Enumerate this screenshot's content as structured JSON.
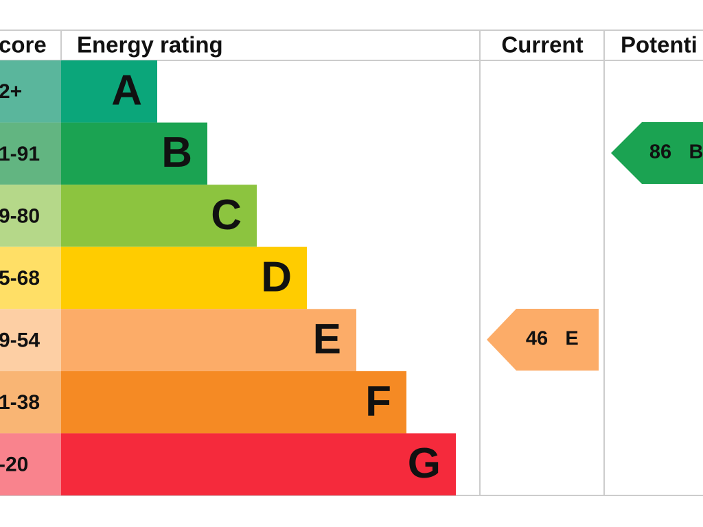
{
  "header": {
    "score": "core",
    "rating": "Energy rating",
    "current": "Current",
    "potential": "Potenti"
  },
  "rows": [
    {
      "score": "2+",
      "letter": "A",
      "color": "#0ba67a"
    },
    {
      "score": "1-91",
      "letter": "B",
      "color": "#1ba352"
    },
    {
      "score": "9-80",
      "letter": "C",
      "color": "#8cc43f"
    },
    {
      "score": "5-68",
      "letter": "D",
      "color": "#ffcc00"
    },
    {
      "score": "9-54",
      "letter": "E",
      "color": "#fcac68"
    },
    {
      "score": "1-38",
      "letter": "F",
      "color": "#f58a24"
    },
    {
      "score": "-20",
      "letter": "G",
      "color": "#f52a3c"
    }
  ],
  "current": {
    "value": 46,
    "rating": "E"
  },
  "potential": {
    "value": 86,
    "rating": "B"
  }
}
